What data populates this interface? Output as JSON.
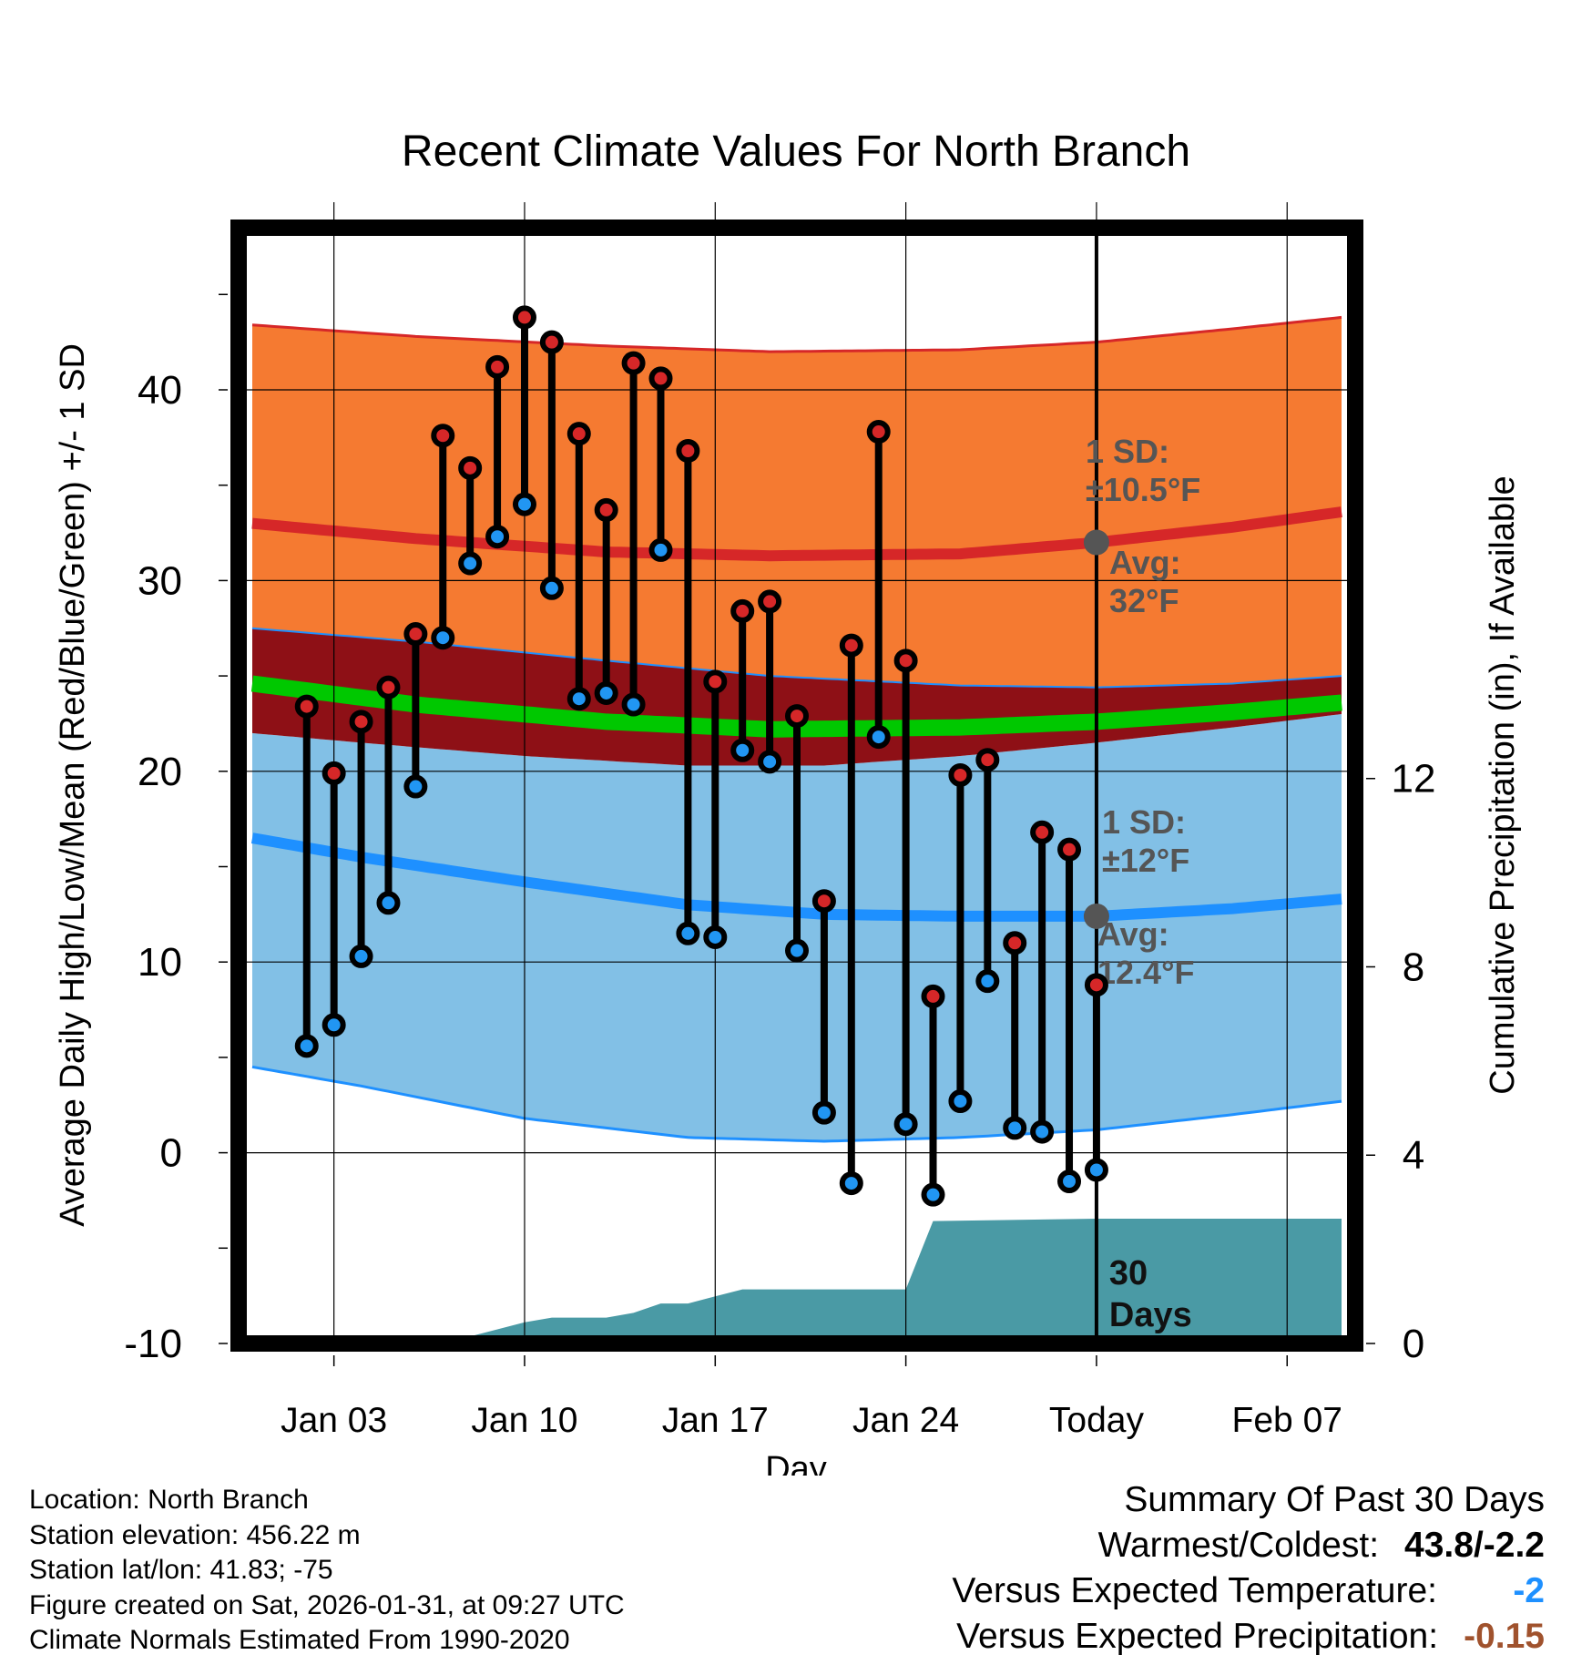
{
  "chart_data": {
    "type": "line",
    "title": "Recent Climate Values For North Branch",
    "xlabel": "Day",
    "ylabel": "Average Daily High/Low/Mean (Red/Blue/Green) +/- 1 SD",
    "y2label": "Cumulative Precipitation (in), If Available",
    "ylim": [
      -10,
      48.5
    ],
    "y2lim": [
      0,
      23.7
    ],
    "xlim": [
      -1.5,
      39.5
    ],
    "x_unit": "days since Jan 01",
    "x_tick_values": [
      2,
      9,
      16,
      23,
      30,
      37
    ],
    "x_tick_labels": [
      "Jan 03",
      "Jan 10",
      "Jan 17",
      "Jan 24",
      "Today",
      "Feb 07"
    ],
    "y_ticks": [
      -10,
      0,
      10,
      20,
      30,
      40
    ],
    "y2_ticks": [
      0,
      4,
      8,
      12
    ],
    "today_x": 30,
    "today_label": "30\nDays",
    "grid": true,
    "normal_high": {
      "x": [
        -1,
        5,
        12,
        18,
        25,
        30,
        35,
        39
      ],
      "avg": [
        33.0,
        32.2,
        31.5,
        31.3,
        31.4,
        32.0,
        32.8,
        33.6
      ],
      "upper": [
        43.4,
        42.8,
        42.3,
        42.0,
        42.1,
        42.5,
        43.2,
        43.8
      ],
      "lower": [
        27.5,
        26.8,
        25.8,
        25.0,
        24.5,
        24.4,
        24.6,
        25.0
      ],
      "annotation": {
        "sd_label": "1 SD:",
        "sd_value": "±10.5°F",
        "avg_label": "Avg:",
        "avg_value": "32°F",
        "marker_value": 32.0
      }
    },
    "normal_low": {
      "x": [
        -1,
        3,
        9,
        15,
        20,
        25,
        30,
        35,
        39
      ],
      "avg": [
        16.5,
        15.5,
        14.2,
        13.0,
        12.5,
        12.4,
        12.4,
        12.8,
        13.3
      ],
      "upper": [
        22.0,
        21.5,
        20.8,
        20.3,
        20.3,
        20.8,
        21.5,
        22.3,
        23.0
      ],
      "lower": [
        4.5,
        3.5,
        1.8,
        0.8,
        0.6,
        0.8,
        1.2,
        2.0,
        2.7
      ],
      "annotation": {
        "sd_label": "1 SD:",
        "sd_value": "±12°F",
        "avg_label": "Avg:",
        "avg_value": "12.4°F",
        "marker_value": 12.4
      }
    },
    "normal_mean": {
      "x": [
        -1,
        5,
        12,
        18,
        25,
        30,
        35,
        39
      ],
      "avg": [
        24.6,
        23.5,
        22.6,
        22.2,
        22.3,
        22.6,
        23.1,
        23.6
      ]
    },
    "series": [
      {
        "name": "High",
        "color": "#d62728",
        "values": [
          23.4,
          19.9,
          22.6,
          24.4,
          27.2,
          37.6,
          35.9,
          41.2,
          43.8,
          42.5,
          37.7,
          33.7,
          41.4,
          40.6,
          36.8,
          24.7,
          28.4,
          28.9,
          22.9,
          13.2,
          26.6,
          37.8,
          25.8,
          8.2,
          19.8,
          20.6,
          11.0,
          16.8,
          15.9,
          8.8
        ]
      },
      {
        "name": "Low",
        "color": "#2196f3",
        "values": [
          5.6,
          6.7,
          10.3,
          13.1,
          19.2,
          27.0,
          30.9,
          32.3,
          34.0,
          29.6,
          23.8,
          24.1,
          23.5,
          31.6,
          11.5,
          11.3,
          21.1,
          20.5,
          10.6,
          2.1,
          -1.6,
          21.8,
          1.5,
          -2.2,
          2.7,
          9.0,
          1.3,
          1.1,
          -1.5,
          -0.9
        ]
      }
    ],
    "days": [
      1,
      2,
      3,
      4,
      5,
      6,
      7,
      8,
      9,
      10,
      11,
      12,
      13,
      14,
      15,
      16,
      17,
      18,
      19,
      20,
      21,
      22,
      23,
      24,
      25,
      26,
      27,
      28,
      29,
      30
    ],
    "precip": {
      "x": [
        -1,
        4,
        6,
        7,
        8,
        9,
        10,
        11,
        12,
        13,
        14,
        15,
        16,
        17,
        23,
        24,
        30,
        39
      ],
      "cum": [
        0.0,
        0.0,
        0.15,
        0.15,
        0.3,
        0.45,
        0.55,
        0.55,
        0.55,
        0.65,
        0.85,
        0.85,
        1.0,
        1.15,
        1.15,
        2.6,
        2.65,
        2.65
      ]
    }
  },
  "colors": {
    "high_band": "#f57a31",
    "high_line": "#d62728",
    "low_band": "#82c0e6",
    "low_line": "#1e90ff",
    "overlap": "#8e1016",
    "mean_line": "#00c800",
    "precip_fill": "#4a9aa5",
    "annotation": "#555555"
  },
  "info": {
    "location": "Location: North Branch",
    "elevation": "Station elevation: 456.22 m",
    "latlon": "Station lat/lon: 41.83; -75",
    "created": "Figure created on Sat, 2026-01-31, at 09:27 UTC",
    "normals": "Climate Normals Estimated From 1990-2020"
  },
  "summary": {
    "heading": "Summary Of Past 30 Days",
    "warm_cold_label": "Warmest/Coldest:",
    "warm_cold_value": "43.8/-2.2",
    "temp_label": "Versus Expected Temperature:",
    "temp_value": "-2",
    "temp_color": "#1e90ff",
    "precip_label": "Versus Expected Precipitation:",
    "precip_value": "-0.15",
    "precip_color": "#a0522d"
  }
}
